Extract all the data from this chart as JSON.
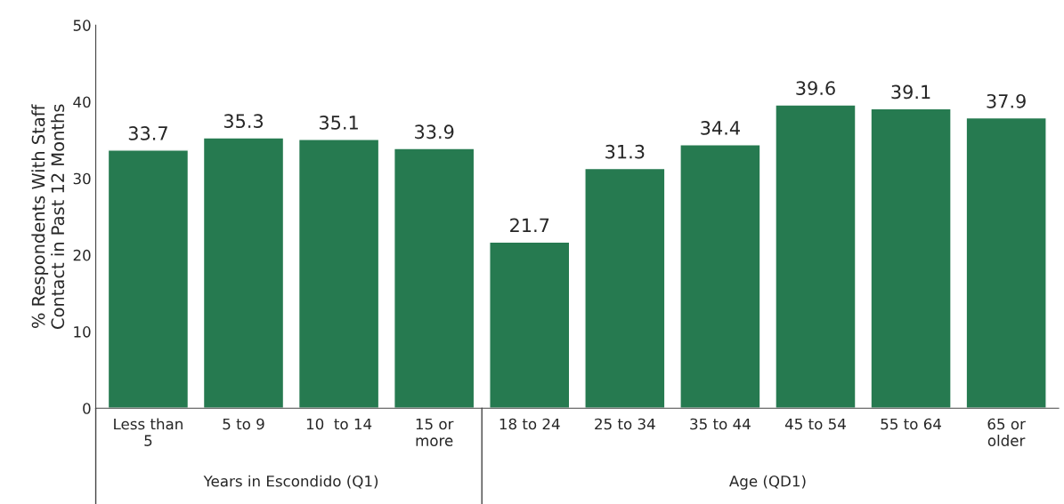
{
  "chart_data": {
    "type": "bar",
    "ylabel": "% Respondents With Staff\nContact in Past 12 Months",
    "categories": [
      "Less than\n5",
      "5 to 9",
      "10  to 14",
      "15 or\nmore",
      "18 to 24",
      "25 to 34",
      "35 to 44",
      "45 to 54",
      "55 to 64",
      "65 or\nolder"
    ],
    "values": [
      33.7,
      35.3,
      35.1,
      33.9,
      21.7,
      31.3,
      34.4,
      39.6,
      39.1,
      37.9
    ],
    "color": "#267a50",
    "ylim": [
      0,
      50
    ],
    "yticks": [
      0,
      10,
      20,
      30,
      40,
      50
    ],
    "grid": false,
    "data_labels": true,
    "annotations": [
      "Years in Escondido (Q1)",
      "Age (QD1)"
    ]
  }
}
